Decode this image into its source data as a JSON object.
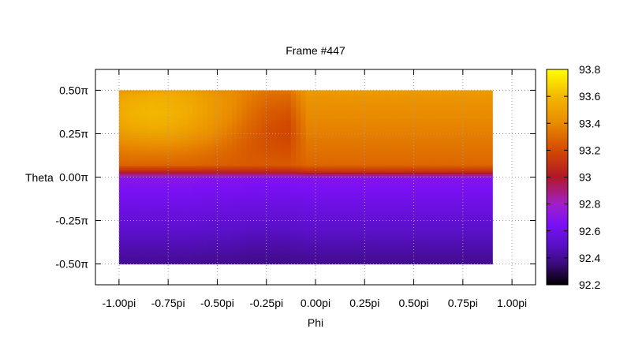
{
  "chart_data": {
    "type": "heatmap",
    "title": "Frame #447",
    "xlabel": "Phi",
    "ylabel": "Theta",
    "grid": true,
    "xlim": [
      -1.12,
      1.12
    ],
    "ylim": [
      -0.62,
      0.62
    ],
    "x_ticks": [
      {
        "value": -1.0,
        "label": "-1.00pi"
      },
      {
        "value": -0.75,
        "label": "-0.75pi"
      },
      {
        "value": -0.5,
        "label": "-0.50pi"
      },
      {
        "value": -0.25,
        "label": "-0.25pi"
      },
      {
        "value": 0.0,
        "label": "0.00pi"
      },
      {
        "value": 0.25,
        "label": "0.25pi"
      },
      {
        "value": 0.5,
        "label": "0.50pi"
      },
      {
        "value": 0.75,
        "label": "0.75pi"
      },
      {
        "value": 1.0,
        "label": "1.00pi"
      }
    ],
    "y_ticks": [
      {
        "value": 0.5,
        "label": "0.50π"
      },
      {
        "value": 0.25,
        "label": "0.25π"
      },
      {
        "value": 0.0,
        "label": "0.00π"
      },
      {
        "value": -0.25,
        "label": "-0.25π"
      },
      {
        "value": -0.5,
        "label": "-0.50π"
      }
    ],
    "data_extent": {
      "x": [
        -1.0,
        0.9
      ],
      "y": [
        -0.5,
        0.5
      ]
    },
    "colorbar": {
      "range": [
        92.2,
        93.8
      ],
      "ticks": [
        {
          "value": 93.8,
          "label": "93.8"
        },
        {
          "value": 93.6,
          "label": "93.6"
        },
        {
          "value": 93.4,
          "label": "93.4"
        },
        {
          "value": 93.2,
          "label": "93.2"
        },
        {
          "value": 93.0,
          "label": "93"
        },
        {
          "value": 92.8,
          "label": "92.8"
        },
        {
          "value": 92.6,
          "label": "92.6"
        },
        {
          "value": 92.4,
          "label": "92.4"
        },
        {
          "value": 92.2,
          "label": "92.2"
        }
      ],
      "colormap": [
        {
          "value": 92.2,
          "color": "#000000"
        },
        {
          "value": 92.35,
          "color": "#3a0b78"
        },
        {
          "value": 92.5,
          "color": "#5a10c8"
        },
        {
          "value": 92.65,
          "color": "#7a10f5"
        },
        {
          "value": 92.8,
          "color": "#a020c8"
        },
        {
          "value": 93.0,
          "color": "#b01828"
        },
        {
          "value": 93.2,
          "color": "#d24a00"
        },
        {
          "value": 93.4,
          "color": "#e98a00"
        },
        {
          "value": 93.6,
          "color": "#f3b800"
        },
        {
          "value": 93.8,
          "color": "#ffff00"
        }
      ]
    },
    "phi_samples": [
      -1.0,
      -0.9,
      -0.8,
      -0.7,
      -0.6,
      -0.5,
      -0.4,
      -0.3,
      -0.2,
      -0.1,
      0.0,
      0.1,
      0.2,
      0.3,
      0.4,
      0.5,
      0.6,
      0.7,
      0.8,
      0.9
    ],
    "theta_samples": [
      0.5,
      0.45,
      0.4,
      0.35,
      0.3,
      0.25,
      0.2,
      0.15,
      0.1,
      0.05,
      0.02,
      -0.02,
      -0.05,
      -0.1,
      -0.15,
      -0.2,
      -0.25,
      -0.3,
      -0.35,
      -0.4,
      -0.45,
      -0.5
    ],
    "values": [
      [
        93.45,
        93.47,
        93.5,
        93.51,
        93.49,
        93.44,
        93.41,
        93.37,
        93.34,
        93.34,
        93.47,
        93.47,
        93.47,
        93.47,
        93.47,
        93.47,
        93.47,
        93.47,
        93.47,
        93.47
      ],
      [
        93.5,
        93.53,
        93.55,
        93.55,
        93.52,
        93.47,
        93.42,
        93.36,
        93.31,
        93.3,
        93.45,
        93.45,
        93.45,
        93.45,
        93.45,
        93.45,
        93.45,
        93.45,
        93.45,
        93.45
      ],
      [
        93.53,
        93.56,
        93.58,
        93.57,
        93.54,
        93.48,
        93.42,
        93.34,
        93.28,
        93.26,
        93.43,
        93.43,
        93.43,
        93.43,
        93.43,
        93.43,
        93.43,
        93.43,
        93.43,
        93.43
      ],
      [
        93.54,
        93.57,
        93.59,
        93.58,
        93.54,
        93.48,
        93.41,
        93.32,
        93.25,
        93.23,
        93.41,
        93.41,
        93.41,
        93.41,
        93.41,
        93.41,
        93.41,
        93.41,
        93.41,
        93.41
      ],
      [
        93.52,
        93.55,
        93.57,
        93.56,
        93.52,
        93.46,
        93.39,
        93.3,
        93.23,
        93.2,
        93.39,
        93.39,
        93.39,
        93.39,
        93.39,
        93.39,
        93.39,
        93.39,
        93.39,
        93.39
      ],
      [
        93.48,
        93.51,
        93.53,
        93.52,
        93.48,
        93.43,
        93.36,
        93.28,
        93.21,
        93.19,
        93.37,
        93.37,
        93.37,
        93.37,
        93.37,
        93.37,
        93.37,
        93.37,
        93.37,
        93.37
      ],
      [
        93.43,
        93.45,
        93.46,
        93.46,
        93.43,
        93.39,
        93.33,
        93.26,
        93.21,
        93.19,
        93.35,
        93.35,
        93.35,
        93.35,
        93.35,
        93.35,
        93.35,
        93.35,
        93.35,
        93.35
      ],
      [
        93.37,
        93.38,
        93.39,
        93.39,
        93.37,
        93.34,
        93.3,
        93.25,
        93.22,
        93.21,
        93.33,
        93.33,
        93.33,
        93.33,
        93.33,
        93.33,
        93.33,
        93.33,
        93.33,
        93.33
      ],
      [
        93.32,
        93.33,
        93.33,
        93.33,
        93.32,
        93.3,
        93.28,
        93.25,
        93.24,
        93.23,
        93.31,
        93.31,
        93.31,
        93.31,
        93.31,
        93.31,
        93.31,
        93.31,
        93.31,
        93.31
      ],
      [
        93.28,
        93.28,
        93.28,
        93.28,
        93.28,
        93.27,
        93.26,
        93.25,
        93.25,
        93.25,
        93.29,
        93.29,
        93.29,
        93.29,
        93.29,
        93.29,
        93.29,
        93.29,
        93.29,
        93.29
      ],
      [
        93.05,
        93.05,
        93.05,
        93.05,
        93.05,
        93.05,
        93.05,
        93.05,
        93.05,
        93.05,
        93.1,
        93.1,
        93.1,
        93.1,
        93.1,
        93.1,
        93.1,
        93.1,
        93.1,
        93.1
      ],
      [
        92.7,
        92.7,
        92.7,
        92.7,
        92.7,
        92.69,
        92.69,
        92.68,
        92.68,
        92.68,
        92.69,
        92.69,
        92.69,
        92.69,
        92.69,
        92.69,
        92.69,
        92.69,
        92.69,
        92.69
      ],
      [
        92.68,
        92.68,
        92.68,
        92.68,
        92.68,
        92.67,
        92.67,
        92.66,
        92.66,
        92.66,
        92.67,
        92.67,
        92.67,
        92.67,
        92.67,
        92.67,
        92.67,
        92.67,
        92.67,
        92.67
      ],
      [
        92.65,
        92.65,
        92.65,
        92.65,
        92.65,
        92.64,
        92.64,
        92.63,
        92.63,
        92.63,
        92.64,
        92.64,
        92.64,
        92.64,
        92.64,
        92.64,
        92.64,
        92.64,
        92.64,
        92.64
      ],
      [
        92.62,
        92.62,
        92.62,
        92.62,
        92.62,
        92.61,
        92.61,
        92.6,
        92.6,
        92.6,
        92.61,
        92.61,
        92.61,
        92.61,
        92.61,
        92.61,
        92.61,
        92.61,
        92.61,
        92.61
      ],
      [
        92.59,
        92.59,
        92.59,
        92.59,
        92.59,
        92.58,
        92.58,
        92.57,
        92.57,
        92.57,
        92.58,
        92.58,
        92.58,
        92.58,
        92.58,
        92.58,
        92.58,
        92.58,
        92.58,
        92.58
      ],
      [
        92.56,
        92.56,
        92.56,
        92.56,
        92.56,
        92.55,
        92.55,
        92.54,
        92.54,
        92.54,
        92.55,
        92.55,
        92.55,
        92.55,
        92.55,
        92.55,
        92.55,
        92.55,
        92.55,
        92.55
      ],
      [
        92.53,
        92.53,
        92.53,
        92.53,
        92.53,
        92.52,
        92.52,
        92.51,
        92.51,
        92.51,
        92.52,
        92.52,
        92.52,
        92.52,
        92.52,
        92.52,
        92.52,
        92.52,
        92.52,
        92.52
      ],
      [
        92.5,
        92.5,
        92.5,
        92.5,
        92.5,
        92.49,
        92.49,
        92.48,
        92.48,
        92.48,
        92.49,
        92.49,
        92.49,
        92.49,
        92.49,
        92.49,
        92.49,
        92.49,
        92.49,
        92.49
      ],
      [
        92.47,
        92.47,
        92.47,
        92.47,
        92.47,
        92.46,
        92.46,
        92.45,
        92.45,
        92.45,
        92.46,
        92.46,
        92.46,
        92.46,
        92.46,
        92.46,
        92.46,
        92.46,
        92.46,
        92.46
      ],
      [
        92.44,
        92.44,
        92.44,
        92.44,
        92.44,
        92.43,
        92.43,
        92.42,
        92.42,
        92.42,
        92.43,
        92.43,
        92.43,
        92.43,
        92.43,
        92.43,
        92.43,
        92.43,
        92.43,
        92.43
      ],
      [
        92.41,
        92.41,
        92.41,
        92.41,
        92.41,
        92.4,
        92.4,
        92.39,
        92.39,
        92.39,
        92.4,
        92.4,
        92.4,
        92.4,
        92.4,
        92.4,
        92.4,
        92.4,
        92.4,
        92.4
      ]
    ]
  }
}
